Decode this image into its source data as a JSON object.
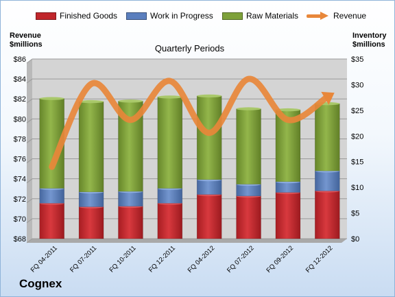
{
  "legend": {
    "finished": "Finished Goods",
    "wip": "Work in Progress",
    "raw": "Raw Materials",
    "revenue": "Revenue"
  },
  "left_axis_title": {
    "line1": "Revenue",
    "line2": "$millions"
  },
  "right_axis_title": {
    "line1": "Inventory",
    "line2": "$millions"
  },
  "company": "Cognex",
  "colors": {
    "finished": "#c0262b",
    "wip": "#5b7fbe",
    "raw": "#7ea13a",
    "revenue": "#e8873a",
    "plot_bg": "#d4d4d4"
  },
  "chart_data": {
    "type": "bar",
    "title": "Quarterly Periods",
    "stacked": true,
    "categories": [
      "FQ 04-2011",
      "FQ 07-2011",
      "FQ 10-2011",
      "FQ 12-2011",
      "FQ 04-2012",
      "FQ 07-2012",
      "FQ 09-2012",
      "FQ 12-2012"
    ],
    "series": [
      {
        "name": "Finished Goods",
        "axis": "right",
        "values": [
          6.9,
          6.2,
          6.3,
          6.9,
          8.6,
          8.3,
          9.0,
          9.3
        ]
      },
      {
        "name": "Work in Progress",
        "axis": "right",
        "values": [
          2.9,
          2.9,
          2.9,
          2.9,
          2.9,
          2.3,
          2.1,
          3.9
        ]
      },
      {
        "name": "Raw Materials",
        "axis": "right",
        "values": [
          17.5,
          17.6,
          17.6,
          17.8,
          16.3,
          14.7,
          14.0,
          13.1
        ]
      },
      {
        "name": "Revenue",
        "type": "line",
        "axis": "left",
        "values": [
          75.2,
          83.5,
          79.9,
          83.8,
          78.6,
          84.0,
          79.9,
          82.2
        ]
      }
    ],
    "y_left": {
      "range": [
        68,
        86
      ],
      "ticks": [
        "$68",
        "$70",
        "$72",
        "$74",
        "$76",
        "$78",
        "$80",
        "$82",
        "$84",
        "$86"
      ]
    },
    "y_right": {
      "range": [
        0,
        35
      ],
      "ticks": [
        "$0",
        "$5",
        "$10",
        "$15",
        "$20",
        "$25",
        "$30",
        "$35"
      ]
    },
    "grid": true,
    "legend": "top"
  }
}
